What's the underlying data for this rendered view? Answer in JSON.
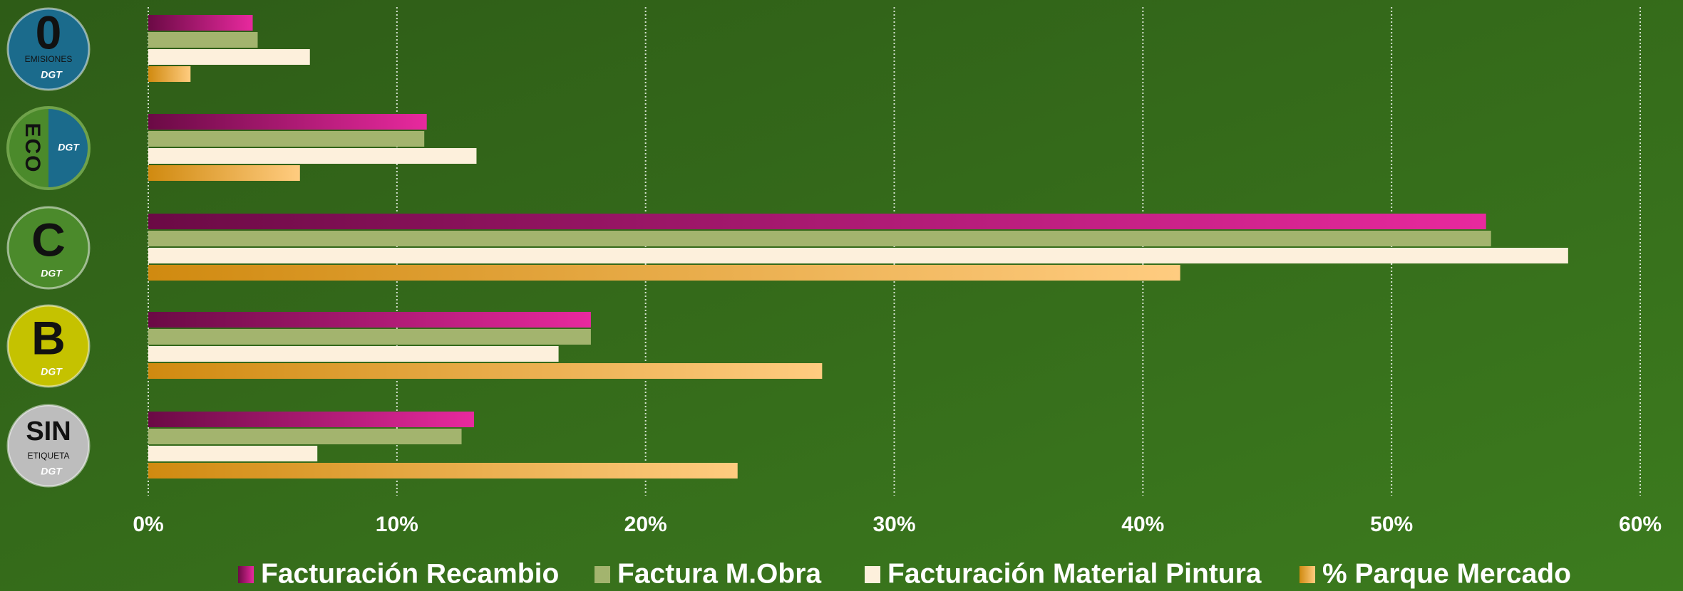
{
  "chart_data": {
    "type": "hbar",
    "categories": [
      "0",
      "ECO",
      "C",
      "B",
      "SIN"
    ],
    "category_sublabels": [
      "EMISIONES",
      null,
      null,
      null,
      "ETIQUETA"
    ],
    "logo_text": "DGT",
    "series": [
      {
        "name": "Facturación Recambio",
        "color": "#e8299e",
        "gradient": [
          "#6b0a45",
          "#e8299e"
        ],
        "values": [
          4.2,
          11.2,
          53.8,
          17.8,
          13.1
        ]
      },
      {
        "name": "Factura M.Obra",
        "color": "#a3b46e",
        "values": [
          4.4,
          11.1,
          54.0,
          17.8,
          12.6
        ]
      },
      {
        "name": "Facturación Material Pintura",
        "color": "#fdf0dc",
        "values": [
          6.5,
          13.2,
          57.1,
          16.5,
          6.8
        ]
      },
      {
        "name": "% Parque Mercado",
        "color": "#ffcc80",
        "gradient": [
          "#d08a10",
          "#ffcc80"
        ],
        "values": [
          1.7,
          6.1,
          41.5,
          27.1,
          23.7
        ]
      }
    ],
    "xlim": [
      0,
      60
    ],
    "xticks": [
      {
        "value": 0,
        "label": "0%"
      },
      {
        "value": 10,
        "label": "10%"
      },
      {
        "value": 20,
        "label": "20%"
      },
      {
        "value": 30,
        "label": "30%"
      },
      {
        "value": 40,
        "label": "40%"
      },
      {
        "value": 50,
        "label": "50%"
      },
      {
        "value": 60,
        "label": "60%"
      }
    ],
    "grid": true
  }
}
